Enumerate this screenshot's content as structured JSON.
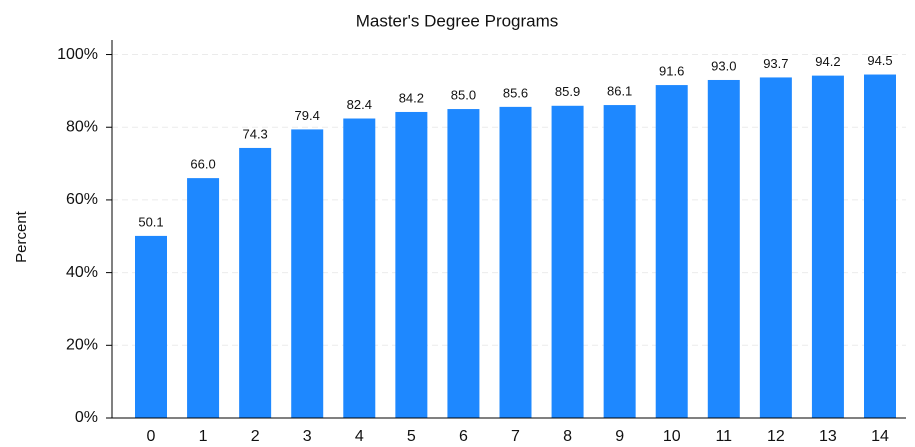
{
  "chart_data": {
    "type": "bar",
    "title": "Master's Degree Programs",
    "y_label": "Percent",
    "categories": [
      "0",
      "1",
      "2",
      "3",
      "4",
      "5",
      "6",
      "7",
      "8",
      "9",
      "10",
      "11",
      "12",
      "13",
      "14"
    ],
    "values": [
      50.1,
      66.0,
      74.3,
      79.4,
      82.4,
      84.2,
      85.0,
      85.6,
      85.9,
      86.1,
      91.6,
      93.0,
      93.7,
      94.2,
      94.5
    ],
    "value_labels": [
      "50.1",
      "66.0",
      "74.3",
      "79.4",
      "82.4",
      "84.2",
      "85.0",
      "85.6",
      "85.9",
      "86.1",
      "91.6",
      "93.0",
      "93.7",
      "94.2",
      "94.5"
    ],
    "color": "#1e88ff",
    "ylim": [
      0,
      104
    ],
    "yticks": [
      {
        "value": 0,
        "label": "0%"
      },
      {
        "value": 20,
        "label": "20%"
      },
      {
        "value": 40,
        "label": "40%"
      },
      {
        "value": 60,
        "label": "60%"
      },
      {
        "value": 80,
        "label": "80%"
      },
      {
        "value": 100,
        "label": "100%"
      }
    ],
    "grid": true
  }
}
